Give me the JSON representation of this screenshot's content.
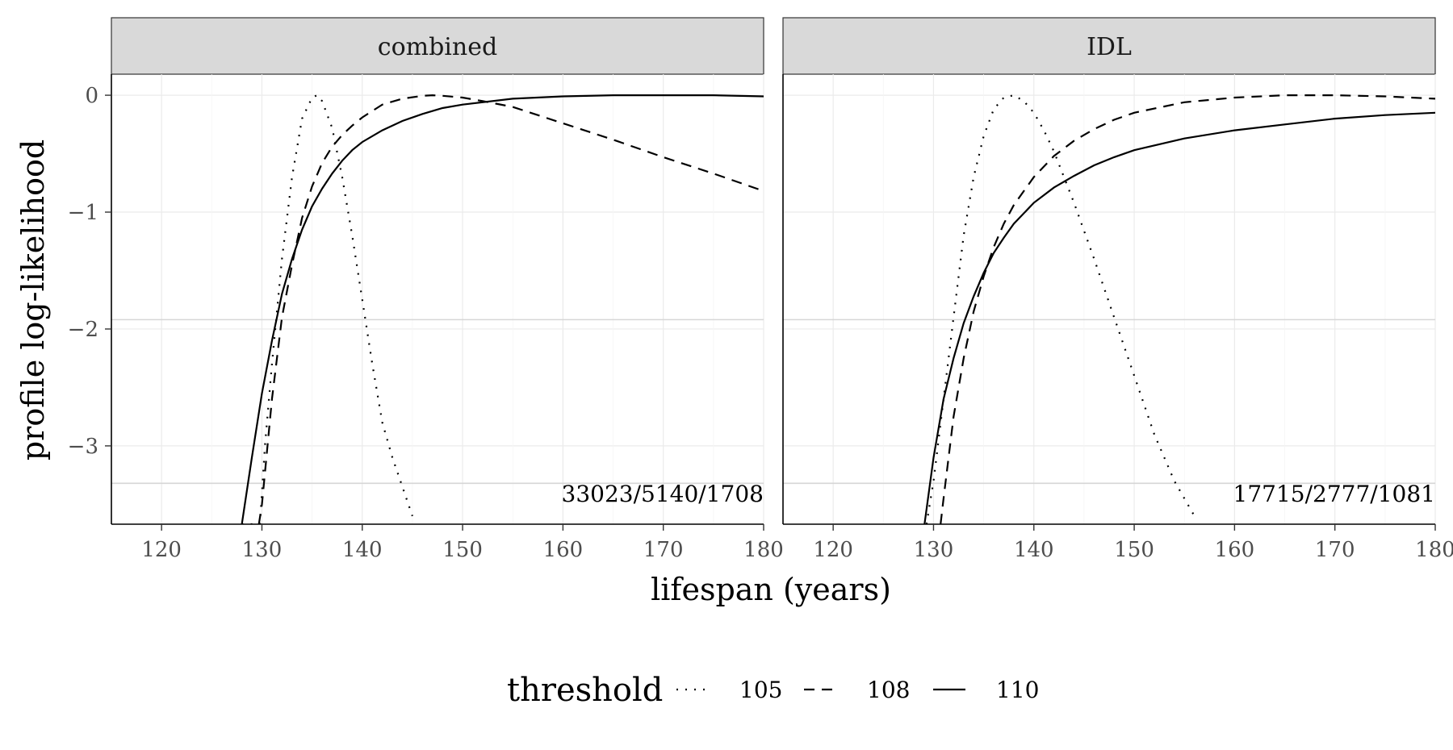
{
  "chart_data": {
    "type": "line",
    "xlabel": "lifespan (years)",
    "ylabel": "profile log-likelihood",
    "xlim": [
      115,
      180
    ],
    "ylim": [
      -3.67,
      0.18
    ],
    "x_ticks": [
      120,
      130,
      140,
      150,
      160,
      170,
      180
    ],
    "y_ticks": [
      0,
      -1,
      -2,
      -3
    ],
    "y_tick_labels": [
      "0",
      "−1",
      "−2",
      "−3"
    ],
    "reference_lines": [
      -1.92,
      -3.32
    ],
    "grid": true,
    "legend": {
      "title": "threshold",
      "placement": "bottom",
      "entries": [
        {
          "label": "105",
          "linetype": "dotted"
        },
        {
          "label": "108",
          "linetype": "dashed"
        },
        {
          "label": "110",
          "linetype": "solid"
        }
      ]
    },
    "panels": [
      {
        "strip": "combined",
        "annotation": "33023/5140/1708",
        "series": [
          {
            "threshold": "105",
            "linetype": "dotted",
            "x": [
              128,
              129.8,
              130.3,
              131,
              132,
              133,
              134,
              135,
              135.5,
              136,
              137,
              138,
              139,
              140,
              141,
              142,
              143,
              144,
              145
            ],
            "y": [
              -3.67,
              -3.67,
              -3.0,
              -2.3,
              -1.4,
              -0.7,
              -0.2,
              -0.02,
              0,
              -0.05,
              -0.28,
              -0.7,
              -1.2,
              -1.75,
              -2.3,
              -2.8,
              -3.1,
              -3.35,
              -3.6
            ]
          },
          {
            "threshold": "108",
            "linetype": "dashed",
            "x": [
              129.7,
              130,
              131,
              132,
              133,
              134,
              135,
              136,
              137,
              138,
              139,
              140,
              142,
              144,
              146,
              147,
              148,
              150,
              152,
              155,
              160,
              165,
              170,
              175,
              180
            ],
            "y": [
              -3.67,
              -3.5,
              -2.6,
              -1.9,
              -1.45,
              -1.05,
              -0.78,
              -0.58,
              -0.44,
              -0.34,
              -0.26,
              -0.19,
              -0.08,
              -0.03,
              -0.005,
              0,
              -0.005,
              -0.02,
              -0.05,
              -0.1,
              -0.24,
              -0.38,
              -0.53,
              -0.67,
              -0.82
            ]
          },
          {
            "threshold": "110",
            "linetype": "solid",
            "x": [
              128,
              129,
              130,
              131,
              132,
              133,
              134,
              135,
              136,
              137,
              138,
              139,
              140,
              142,
              144,
              146,
              148,
              150,
              155,
              160,
              165,
              170,
              175,
              180
            ],
            "y": [
              -3.67,
              -3.1,
              -2.55,
              -2.1,
              -1.7,
              -1.4,
              -1.15,
              -0.95,
              -0.8,
              -0.67,
              -0.56,
              -0.47,
              -0.4,
              -0.3,
              -0.22,
              -0.16,
              -0.11,
              -0.08,
              -0.03,
              -0.01,
              0,
              0,
              0,
              -0.01
            ]
          }
        ]
      },
      {
        "strip": "IDL",
        "annotation": "17715/2777/1081",
        "series": [
          {
            "threshold": "105",
            "linetype": "dotted",
            "x": [
              129.3,
              130,
              131,
              132,
              133,
              134,
              135,
              136,
              137,
              138,
              139,
              140,
              141,
              142,
              144,
              146,
              148,
              150,
              152,
              154,
              156
            ],
            "y": [
              -3.67,
              -3.3,
              -2.6,
              -1.9,
              -1.2,
              -0.7,
              -0.35,
              -0.12,
              -0.02,
              0,
              -0.05,
              -0.15,
              -0.3,
              -0.48,
              -0.92,
              -1.4,
              -1.9,
              -2.4,
              -2.9,
              -3.3,
              -3.6
            ]
          },
          {
            "threshold": "108",
            "linetype": "dashed",
            "x": [
              130.7,
              131,
              132,
              133,
              134,
              135,
              136,
              137,
              138,
              140,
              142,
              144,
              146,
              148,
              150,
              155,
              160,
              165,
              170,
              175,
              180
            ],
            "y": [
              -3.67,
              -3.45,
              -2.75,
              -2.25,
              -1.85,
              -1.55,
              -1.3,
              -1.1,
              -0.94,
              -0.7,
              -0.52,
              -0.39,
              -0.29,
              -0.21,
              -0.15,
              -0.06,
              -0.02,
              0,
              0,
              -0.01,
              -0.03
            ]
          },
          {
            "threshold": "110",
            "linetype": "solid",
            "x": [
              129.1,
              130,
              131,
              132,
              133,
              134,
              135,
              136,
              137,
              138,
              140,
              142,
              144,
              146,
              148,
              150,
              155,
              160,
              165,
              170,
              175,
              180
            ],
            "y": [
              -3.67,
              -3.1,
              -2.6,
              -2.25,
              -1.95,
              -1.72,
              -1.52,
              -1.35,
              -1.22,
              -1.1,
              -0.92,
              -0.79,
              -0.69,
              -0.6,
              -0.53,
              -0.47,
              -0.37,
              -0.3,
              -0.25,
              -0.2,
              -0.17,
              -0.15
            ]
          }
        ]
      }
    ]
  }
}
